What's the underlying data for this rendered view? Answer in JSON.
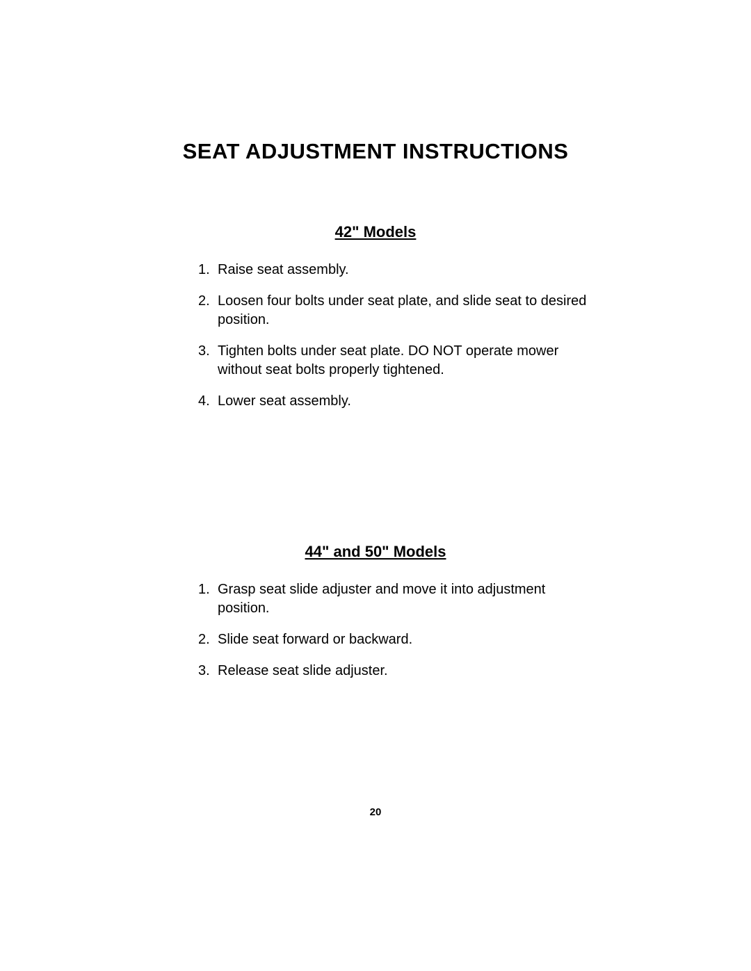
{
  "title": "SEAT ADJUSTMENT INSTRUCTIONS",
  "sections": [
    {
      "heading": "42\"  Models",
      "items": [
        {
          "num": "1.",
          "text": "Raise seat assembly."
        },
        {
          "num": "2.",
          "text": "Loosen four bolts under seat plate, and slide seat to desired position."
        },
        {
          "num": "3.",
          "text": "Tighten bolts under seat plate.  DO NOT operate mower without seat bolts properly tightened."
        },
        {
          "num": "4.",
          "text": "Lower seat assembly."
        }
      ]
    },
    {
      "heading": "44\"  and  50\"  Models",
      "items": [
        {
          "num": "1.",
          "text": "Grasp seat slide adjuster and move it into adjustment position."
        },
        {
          "num": "2.",
          "text": "Slide seat forward or backward."
        },
        {
          "num": "3.",
          "text": "Release seat slide adjuster."
        }
      ]
    }
  ],
  "page_number": "20",
  "styling": {
    "background_color": "#ffffff",
    "text_color": "#000000",
    "title_fontsize": 31,
    "heading_fontsize": 22,
    "body_fontsize": 20,
    "pagenum_fontsize": 15,
    "font_family": "Arial"
  }
}
